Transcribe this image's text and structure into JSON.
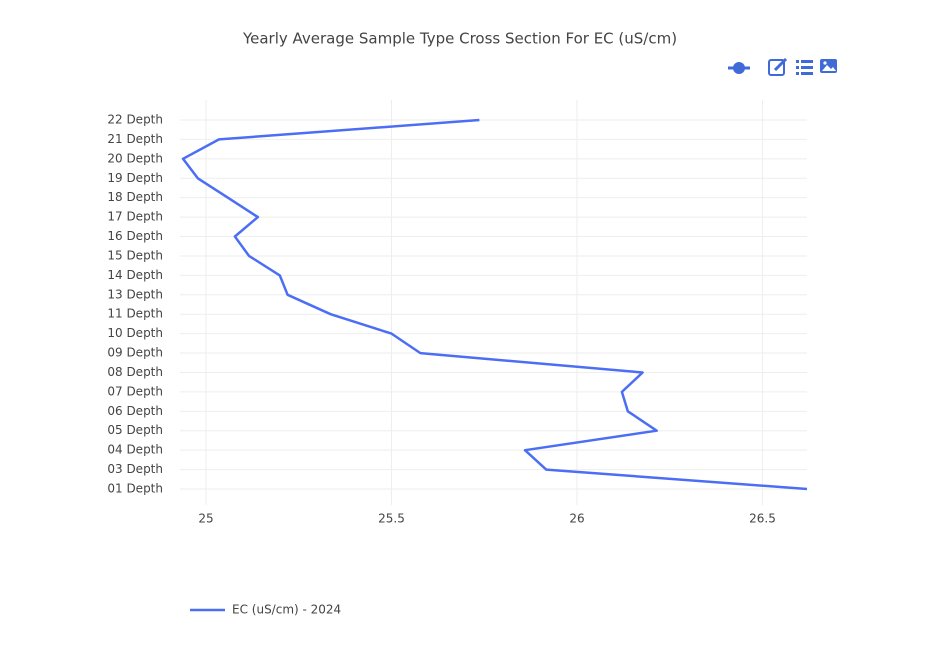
{
  "chart_data": {
    "type": "line",
    "orientation": "horizontal",
    "title": "Yearly Average Sample Type Cross Section For EC (uS/cm)",
    "categories": [
      "01 Depth",
      "03 Depth",
      "04 Depth",
      "05 Depth",
      "06 Depth",
      "07 Depth",
      "08 Depth",
      "09 Depth",
      "10 Depth",
      "11 Depth",
      "13 Depth",
      "14 Depth",
      "15 Depth",
      "16 Depth",
      "17 Depth",
      "18 Depth",
      "19 Depth",
      "20 Depth",
      "21 Depth",
      "22 Depth"
    ],
    "series": [
      {
        "name": "EC (uS/cm) - 2024",
        "color": "#4c6ef5",
        "values": [
          26.62,
          25.917,
          25.86,
          26.215,
          26.137,
          26.121,
          26.177,
          25.578,
          25.5,
          25.336,
          25.22,
          25.199,
          25.116,
          25.078,
          25.14,
          25.059,
          24.978,
          24.938,
          25.035,
          25.737
        ]
      }
    ],
    "xlim": [
      24.93,
      26.62
    ],
    "xticks": [
      25,
      25.5,
      26,
      26.5
    ],
    "grid": true,
    "legend": "bottom-left"
  }
}
